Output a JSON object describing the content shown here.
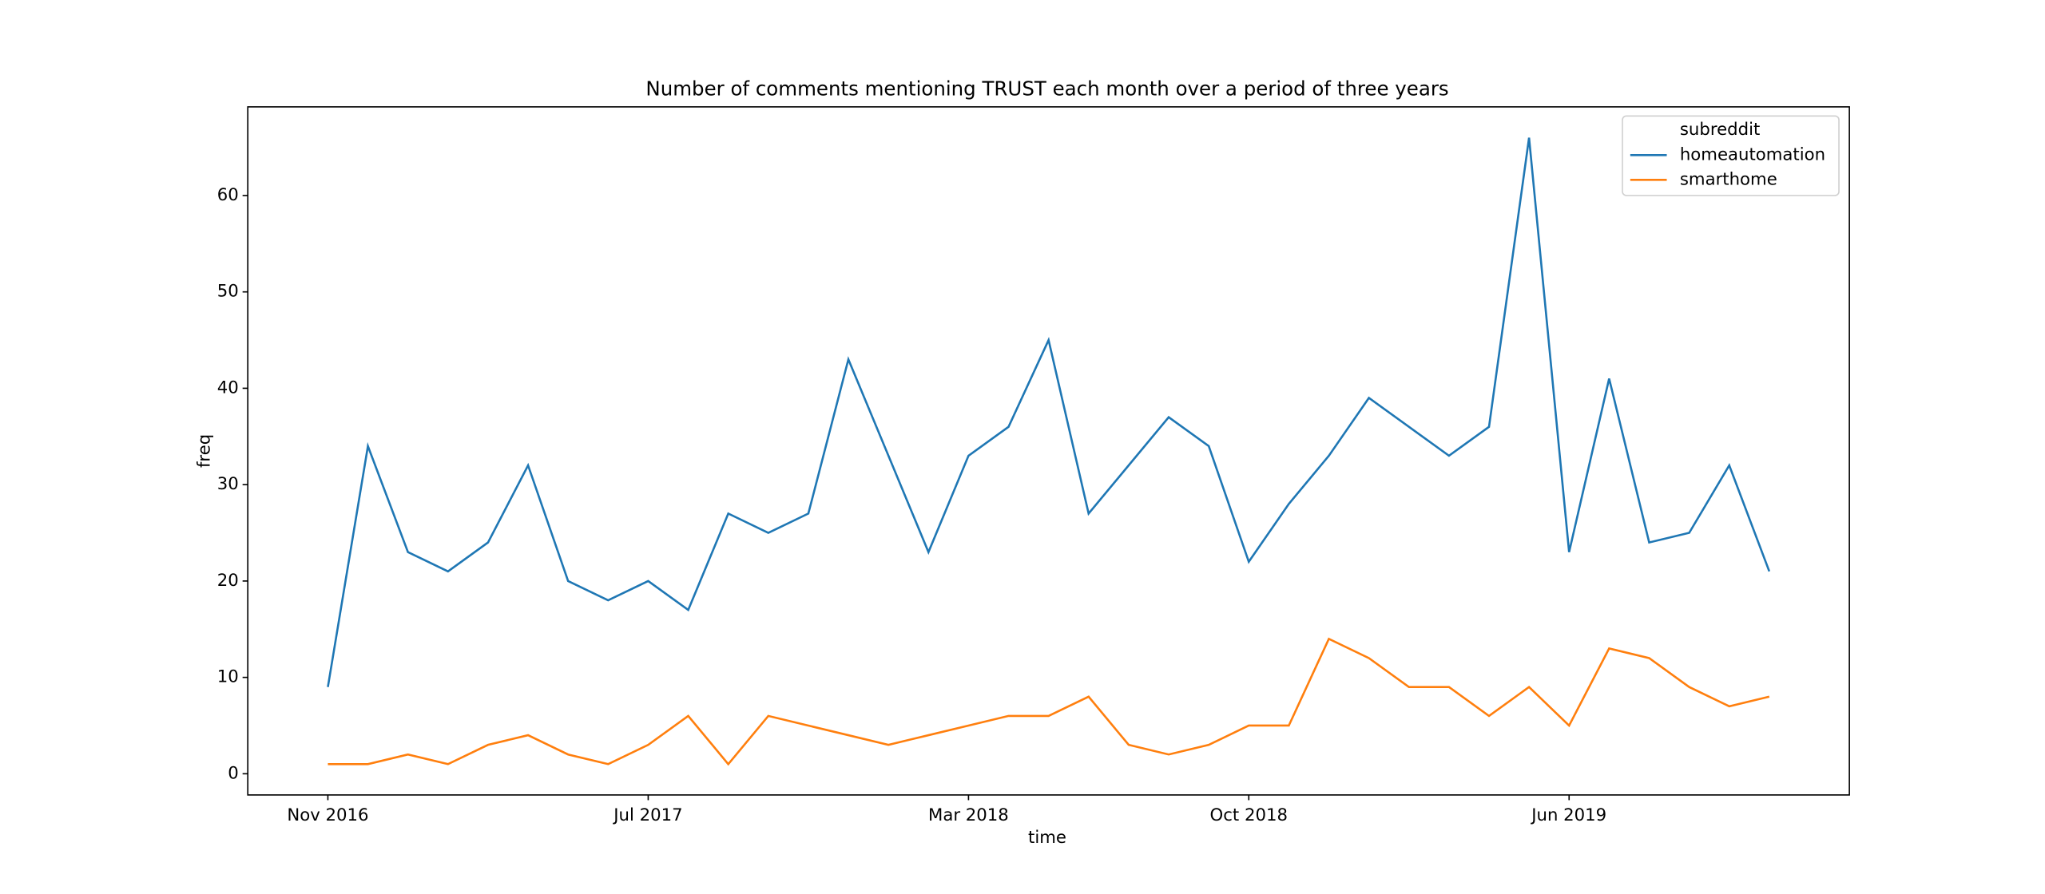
{
  "chart_data": {
    "type": "line",
    "title": "Number of comments mentioning TRUST each month over a period of three years",
    "xlabel": "time",
    "ylabel": "freq",
    "x": [
      "2016-11",
      "2016-12",
      "2017-01",
      "2017-02",
      "2017-03",
      "2017-04",
      "2017-05",
      "2017-06",
      "2017-07",
      "2017-08",
      "2017-09",
      "2017-10",
      "2017-11",
      "2017-12",
      "2018-01",
      "2018-02",
      "2018-03",
      "2018-04",
      "2018-05",
      "2018-06",
      "2018-07",
      "2018-08",
      "2018-09",
      "2018-10",
      "2018-11",
      "2018-12",
      "2019-01",
      "2019-02",
      "2019-03",
      "2019-04",
      "2019-05",
      "2019-06",
      "2019-07",
      "2019-08",
      "2019-09",
      "2019-10",
      "2019-11"
    ],
    "series": [
      {
        "name": "homeautomation",
        "color": "#1f77b4",
        "values": [
          9,
          34,
          23,
          21,
          24,
          32,
          20,
          18,
          20,
          17,
          27,
          25,
          27,
          43,
          33,
          23,
          33,
          36,
          45,
          27,
          32,
          37,
          34,
          22,
          28,
          33,
          39,
          36,
          33,
          36,
          66,
          23,
          41,
          24,
          25,
          32,
          21
        ]
      },
      {
        "name": "smarthome",
        "color": "#ff7f0e",
        "values": [
          1,
          1,
          2,
          1,
          3,
          4,
          2,
          1,
          3,
          6,
          1,
          6,
          5,
          4,
          3,
          4,
          5,
          6,
          6,
          8,
          3,
          2,
          3,
          5,
          5,
          14,
          12,
          9,
          9,
          6,
          9,
          5,
          13,
          12,
          9,
          7,
          8
        ]
      }
    ],
    "legend_title": "subreddit",
    "legend": "upper right",
    "xlim": [
      "2016-09",
      "2020-01"
    ],
    "xticks": [
      {
        "value": "2016-11",
        "label": "Nov 2016"
      },
      {
        "value": "2017-07",
        "label": "Jul 2017"
      },
      {
        "value": "2018-03",
        "label": "Mar 2018"
      },
      {
        "value": "2018-10",
        "label": "Oct 2018"
      },
      {
        "value": "2019-06",
        "label": "Jun 2019"
      }
    ],
    "ylim": [
      -2.2,
      69.2
    ],
    "yticks": [
      0,
      10,
      20,
      30,
      40,
      50,
      60
    ],
    "grid": false
  }
}
